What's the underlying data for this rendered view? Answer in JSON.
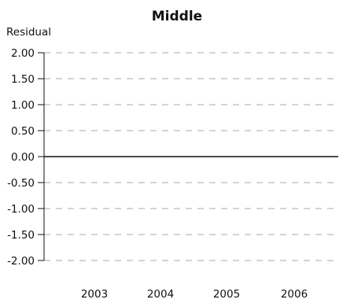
{
  "chart_data": {
    "type": "line",
    "title": "Middle",
    "xlabel": "",
    "ylabel": "Residual",
    "categories": [
      "2003",
      "2004",
      "2005",
      "2006"
    ],
    "yticks": [
      "2.00",
      "1.50",
      "1.00",
      "0.50",
      "0.00",
      "-0.50",
      "-1.00",
      "-1.50",
      "-2.00"
    ],
    "ytick_values": [
      2.0,
      1.5,
      1.0,
      0.5,
      0.0,
      -0.5,
      -1.0,
      -1.5,
      -2.0
    ],
    "ylim": [
      -2.0,
      2.0
    ],
    "grid": "horizontal dashed",
    "reference_line": 0.0,
    "series": []
  }
}
